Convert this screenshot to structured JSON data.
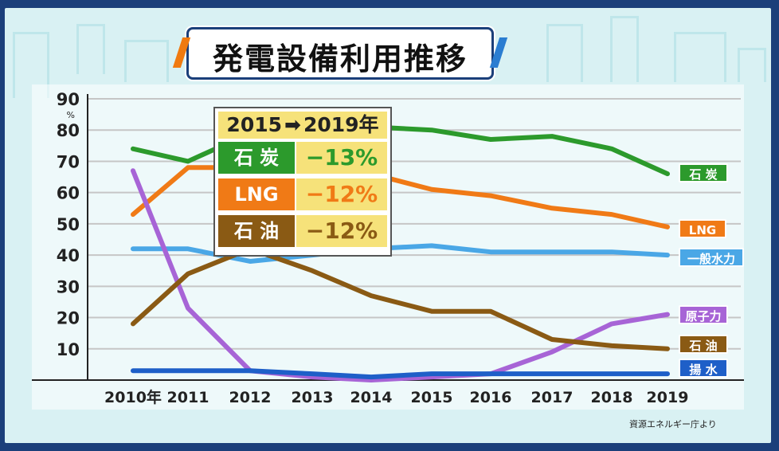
{
  "title": "発電設備利用推移",
  "source": "資源エネルギー庁より",
  "summary": {
    "header_from": "2015",
    "header_to": "2019年",
    "rows": [
      {
        "label": "石 炭",
        "change": "−13%",
        "label_color": "#2c9a2c"
      },
      {
        "label": "LNG",
        "change": "−12%",
        "label_color": "#f07a16"
      },
      {
        "label": "石 油",
        "change": "−12%",
        "label_color": "#8a5a14"
      }
    ]
  },
  "chart_data": {
    "type": "line",
    "x": [
      "2010",
      "2011",
      "2012",
      "2013",
      "2014",
      "2015",
      "2016",
      "2017",
      "2018",
      "2019"
    ],
    "x_tick_labels": [
      "2010年",
      "2011",
      "2012",
      "2013",
      "2014",
      "2015",
      "2016",
      "2017",
      "2018",
      "2019"
    ],
    "y_ticks": [
      "10",
      "20",
      "30",
      "40",
      "50",
      "60",
      "70",
      "80",
      "90"
    ],
    "y_unit": "%",
    "ylim": [
      0,
      90
    ],
    "grid": true,
    "legend": "right-end labels",
    "series": [
      {
        "name": "石 炭",
        "color": "#2c9a2c",
        "values": [
          74,
          70,
          79,
          82,
          81,
          80,
          77,
          78,
          74,
          66
        ]
      },
      {
        "name": "LNG",
        "color": "#f07a16",
        "values": [
          53,
          68,
          68,
          68,
          66,
          61,
          59,
          55,
          53,
          49
        ]
      },
      {
        "name": "一般水力",
        "color": "#4aa7e6",
        "values": [
          42,
          42,
          38,
          40,
          42,
          43,
          41,
          41,
          41,
          40
        ]
      },
      {
        "name": "原子力",
        "color": "#a764d6",
        "values": [
          67,
          23,
          3,
          1,
          0,
          1,
          2,
          9,
          18,
          21
        ]
      },
      {
        "name": "石 油",
        "color": "#8a5a14",
        "values": [
          18,
          34,
          42,
          35,
          27,
          22,
          22,
          13,
          11,
          10
        ]
      },
      {
        "name": "揚 水",
        "color": "#1e5fc8",
        "values": [
          3,
          3,
          3,
          2,
          1,
          2,
          2,
          2,
          2,
          2
        ]
      }
    ]
  }
}
